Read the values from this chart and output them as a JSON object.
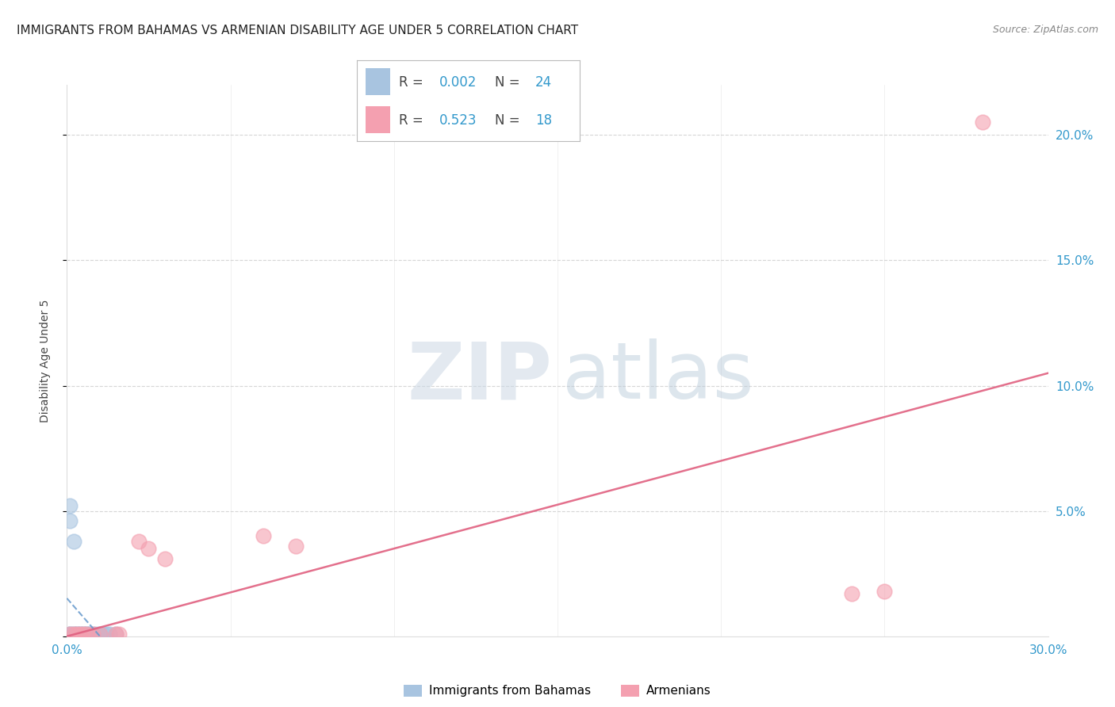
{
  "title": "IMMIGRANTS FROM BAHAMAS VS ARMENIAN DISABILITY AGE UNDER 5 CORRELATION CHART",
  "source": "Source: ZipAtlas.com",
  "ylabel": "Disability Age Under 5",
  "xlim": [
    0.0,
    0.3
  ],
  "ylim": [
    0.0,
    0.22
  ],
  "xtick_positions": [
    0.0,
    0.05,
    0.1,
    0.15,
    0.2,
    0.25,
    0.3
  ],
  "xticklabels": [
    "0.0%",
    "",
    "",
    "",
    "",
    "",
    "30.0%"
  ],
  "ytick_positions": [
    0.0,
    0.05,
    0.1,
    0.15,
    0.2
  ],
  "yticklabels": [
    "",
    "5.0%",
    "10.0%",
    "15.0%",
    "20.0%"
  ],
  "bahamas_R": "0.002",
  "bahamas_N": "24",
  "armenian_R": "0.523",
  "armenian_N": "18",
  "bahamas_color": "#a8c4e0",
  "armenian_color": "#f4a0b0",
  "bahamas_line_color": "#6699cc",
  "armenian_line_color": "#e06080",
  "tick_color": "#3399cc",
  "grid_color": "#cccccc",
  "background_color": "#ffffff",
  "title_color": "#222222",
  "source_color": "#888888",
  "ylabel_color": "#444444",
  "title_fontsize": 11,
  "axis_label_fontsize": 10,
  "tick_fontsize": 11,
  "legend_fontsize": 12,
  "source_fontsize": 9,
  "bahamas_scatter_x": [
    0.001,
    0.001,
    0.002,
    0.002,
    0.003,
    0.003,
    0.004,
    0.004,
    0.005,
    0.005,
    0.006,
    0.006,
    0.007,
    0.007,
    0.008,
    0.009,
    0.01,
    0.011,
    0.012,
    0.013,
    0.015,
    0.001,
    0.001,
    0.002
  ],
  "bahamas_scatter_y": [
    0.001,
    0.001,
    0.001,
    0.001,
    0.001,
    0.001,
    0.001,
    0.001,
    0.001,
    0.001,
    0.001,
    0.001,
    0.001,
    0.001,
    0.001,
    0.001,
    0.001,
    0.001,
    0.001,
    0.001,
    0.001,
    0.052,
    0.046,
    0.038
  ],
  "armenian_scatter_x": [
    0.001,
    0.002,
    0.003,
    0.004,
    0.005,
    0.006,
    0.008,
    0.01,
    0.015,
    0.016,
    0.022,
    0.025,
    0.03,
    0.06,
    0.07,
    0.24,
    0.25,
    0.28
  ],
  "armenian_scatter_y": [
    0.001,
    0.001,
    0.001,
    0.001,
    0.001,
    0.001,
    0.001,
    0.001,
    0.001,
    0.001,
    0.038,
    0.035,
    0.031,
    0.04,
    0.036,
    0.017,
    0.018,
    0.205
  ],
  "bahamas_line_slope": 0.0,
  "bahamas_line_intercept": 0.008,
  "armenian_line_x0": 0.0,
  "armenian_line_y0": 0.0,
  "armenian_line_x1": 0.3,
  "armenian_line_y1": 0.105
}
